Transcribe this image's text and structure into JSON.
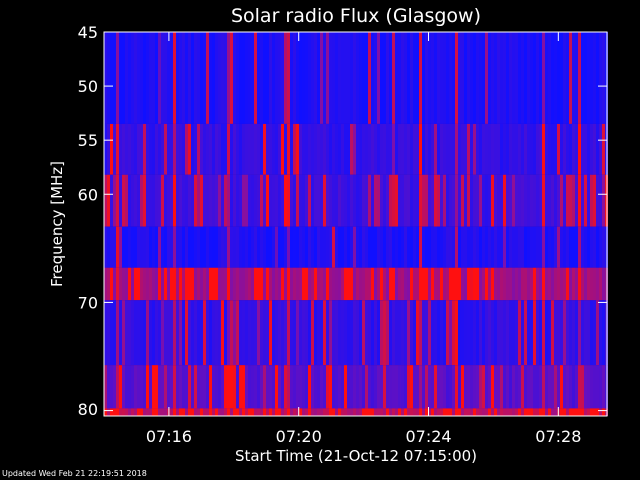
{
  "chart_data": {
    "type": "heatmap",
    "title": "Solar radio Flux (Glasgow)",
    "xlabel": "Start Time (21-Oct-12 07:15:00)",
    "ylabel": "Frequency [MHz]",
    "x_unit": "minutes",
    "xlim": [
      "07:14:00",
      "07:29:30"
    ],
    "ylim": [
      45,
      80.5
    ],
    "y_reversed": true,
    "x_ticks": [
      "07:16",
      "07:20",
      "07:24",
      "07:28"
    ],
    "y_ticks": [
      45,
      50,
      55,
      60,
      70,
      80
    ],
    "colormap": {
      "low": "#1010ff",
      "mid": "#7a10b0",
      "high": "#ff1010"
    },
    "bands": [
      {
        "f_start": 45.0,
        "f_end": 53.5,
        "level": 0.05,
        "spike_density": 0.04
      },
      {
        "f_start": 53.5,
        "f_end": 58.2,
        "level": 0.16,
        "spike_density": 0.12
      },
      {
        "f_start": 58.2,
        "f_end": 63.0,
        "level": 0.2,
        "spike_density": 0.3
      },
      {
        "f_start": 63.0,
        "f_end": 66.8,
        "level": 0.06,
        "spike_density": 0.05
      },
      {
        "f_start": 66.8,
        "f_end": 69.8,
        "level": 0.62,
        "spike_density": 0.28
      },
      {
        "f_start": 69.8,
        "f_end": 75.8,
        "level": 0.15,
        "spike_density": 0.18
      },
      {
        "f_start": 75.8,
        "f_end": 79.8,
        "level": 0.32,
        "spike_density": 0.22
      },
      {
        "f_start": 79.8,
        "f_end": 80.5,
        "level": 0.72,
        "spike_density": 0.4
      }
    ]
  },
  "footer": {
    "updated": "Updated Wed Feb 21 22:19:51 2018"
  }
}
